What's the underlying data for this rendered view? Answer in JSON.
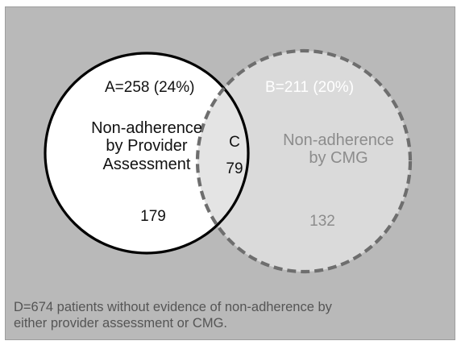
{
  "venn": {
    "set_a": {
      "total": "A=258 (24%)",
      "title_lines": [
        "Non-adherence",
        "by Provider",
        "Assessment"
      ],
      "only_count": "179",
      "fill": "#ffffff",
      "stroke": "#000000",
      "line_style": "solid"
    },
    "set_b": {
      "total": "B=211 (20%)",
      "title_lines": [
        "Non-adherence",
        "by CMG"
      ],
      "only_count": "132",
      "fill": "#dadada",
      "stroke": "#6e6e6e",
      "line_style": "dashed"
    },
    "overlap": {
      "letter": "C",
      "count": "79"
    },
    "outside_note_lines": [
      "D=674 patients without evidence of non-adherence by",
      "either provider assessment or CMG."
    ],
    "background": "#b9b9b9"
  }
}
